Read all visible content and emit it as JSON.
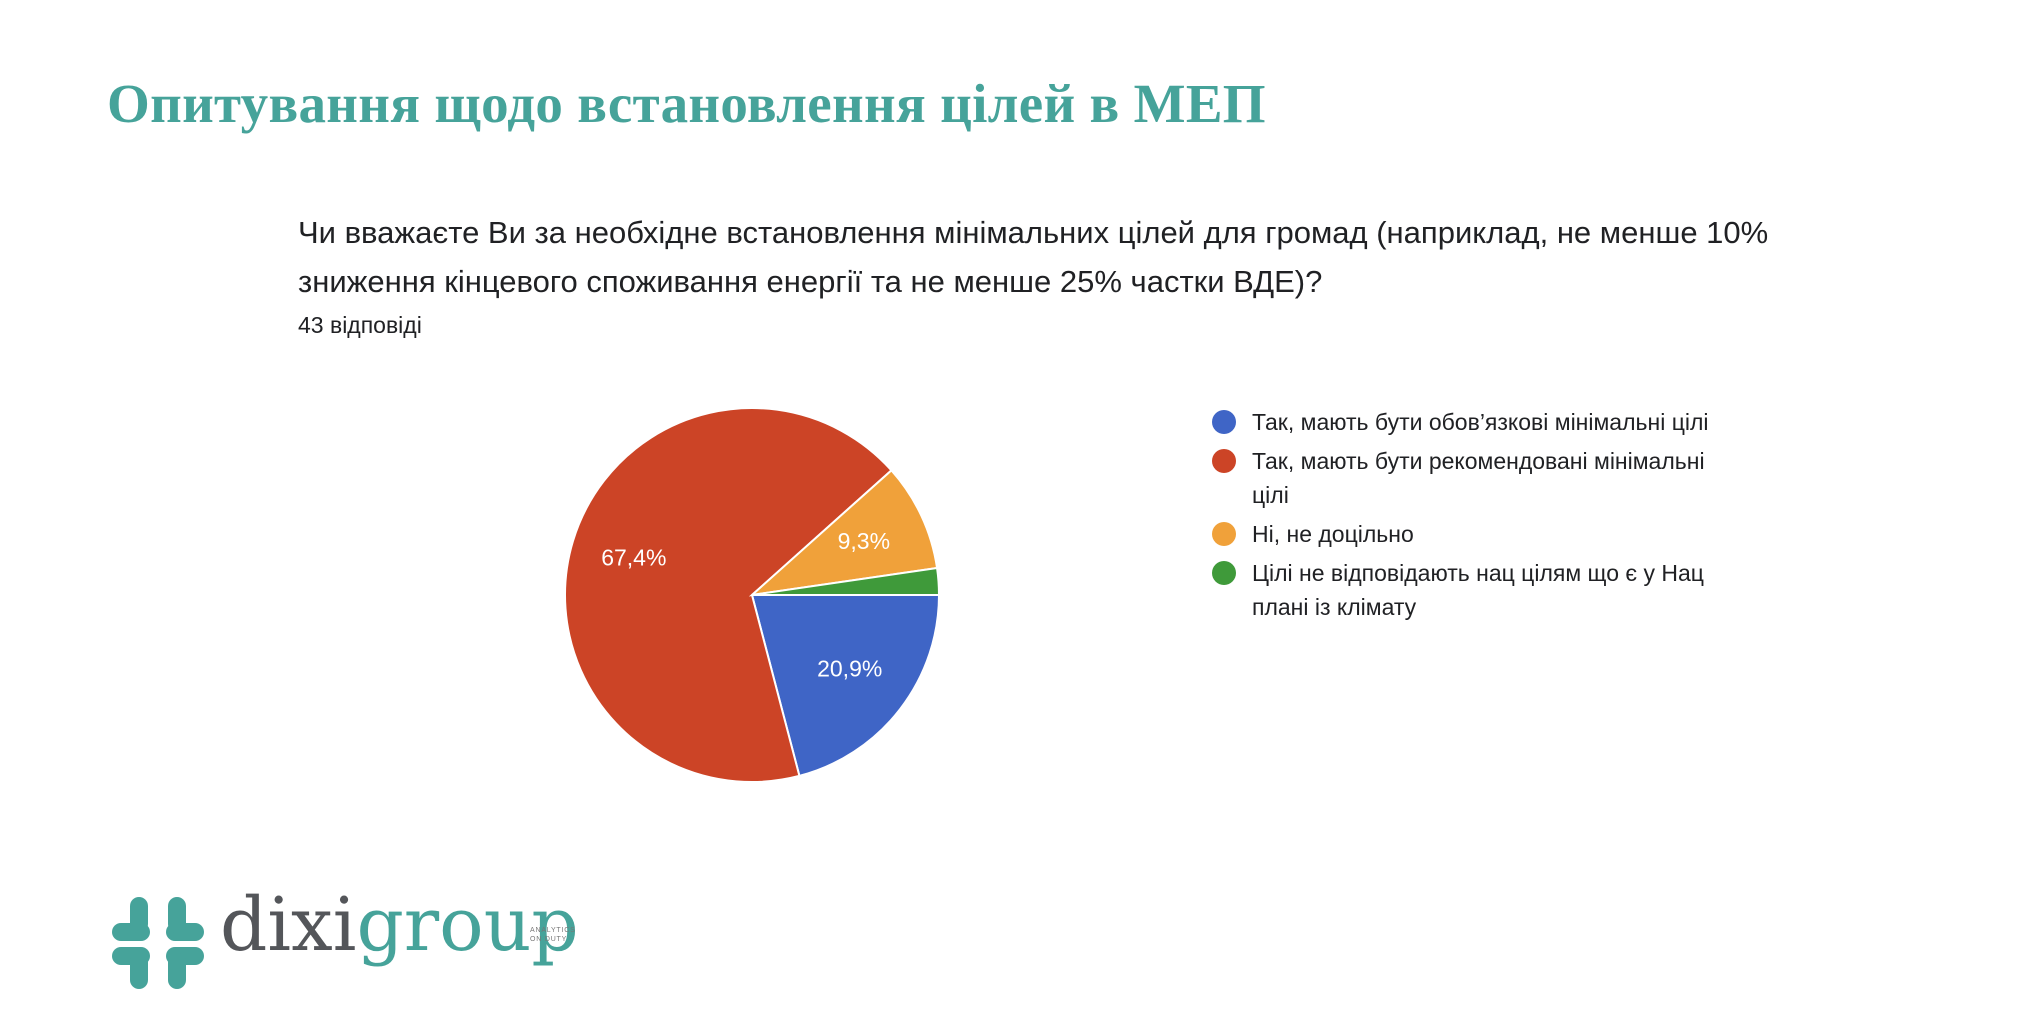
{
  "title": "Опитування щодо встановлення цілей в МЕП",
  "question": {
    "text": "Чи вважаєте Ви за необхідне встановлення мінімальних цілей для громад (наприклад, не менше 10% зниження кінцевого споживання енергії та не менше 25% частки ВДЕ)?",
    "responses": "43 відповіді"
  },
  "chart_data": {
    "type": "pie",
    "categories": [
      "Так, мають бути обов’язкові мінімальні цілі",
      "Так, мають бути рекомендовані мінімальні цілі",
      "Ні, не доцільно",
      "Цілі не відповідають нац цілям що є у Нац плані із клімату"
    ],
    "values": [
      20.9,
      67.4,
      9.3,
      2.3
    ],
    "labels": [
      "20,9%",
      "67,4%",
      "9,3%",
      ""
    ],
    "colors": [
      "#3F65C6",
      "#CC4426",
      "#F0A13A",
      "#3F9A3A"
    ],
    "legend_position": "right"
  },
  "logo": {
    "part1": "dixi",
    "part2": "group",
    "tagline_line1": "ANALYTICS",
    "tagline_line2": "ON DUTY",
    "colors": {
      "primary": "#46A39A",
      "secondary": "#54565A"
    }
  }
}
